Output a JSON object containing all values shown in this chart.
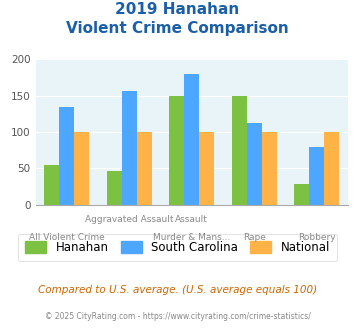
{
  "title_line1": "2019 Hanahan",
  "title_line2": "Violent Crime Comparison",
  "categories": [
    "All Violent Crime",
    "Aggravated Assault",
    "Murder & Mans...",
    "Rape",
    "Robbery"
  ],
  "hanahan": [
    55,
    46,
    149,
    149,
    29
  ],
  "south_carolina": [
    135,
    157,
    180,
    113,
    79
  ],
  "national": [
    100,
    100,
    100,
    100,
    100
  ],
  "color_hanahan": "#7dc142",
  "color_sc": "#4da6ff",
  "color_national": "#ffb347",
  "ylim": [
    0,
    200
  ],
  "yticks": [
    0,
    50,
    100,
    150,
    200
  ],
  "background_color": "#e8f4f8",
  "title_color": "#1a5fa8",
  "footnote": "Compared to U.S. average. (U.S. average equals 100)",
  "footnote2": "© 2025 CityRating.com - https://www.cityrating.com/crime-statistics/",
  "legend_labels": [
    "Hanahan",
    "South Carolina",
    "National"
  ],
  "label_top": [
    "",
    "Aggravated Assault",
    "Assault",
    "",
    ""
  ],
  "label_bot": [
    "All Violent Crime",
    "",
    "Murder & Mans...",
    "Rape",
    "Robbery"
  ]
}
